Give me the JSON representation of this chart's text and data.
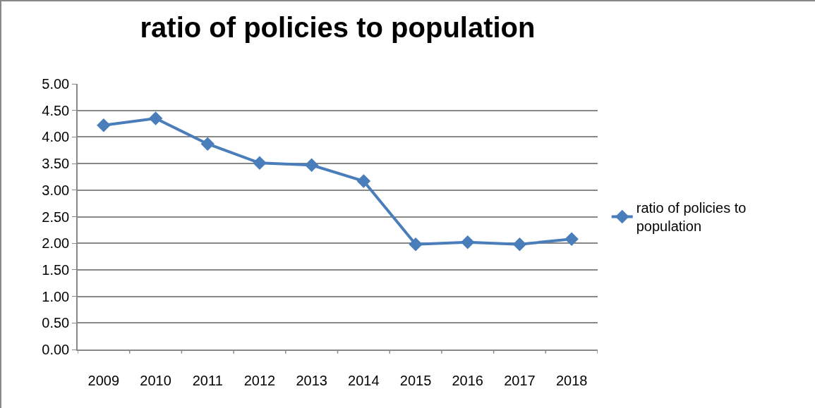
{
  "chart_data": {
    "type": "line",
    "title": "ratio of policies to population",
    "categories": [
      "2009",
      "2010",
      "2011",
      "2012",
      "2013",
      "2014",
      "2015",
      "2016",
      "2017",
      "2018"
    ],
    "series": [
      {
        "name": "ratio of policies to population",
        "color": "#4a7ebb",
        "values": [
          4.22,
          4.35,
          3.87,
          3.51,
          3.47,
          3.17,
          1.98,
          2.02,
          1.98,
          2.08
        ]
      }
    ],
    "ylim": [
      0,
      5
    ],
    "yticks": [
      {
        "value": 0,
        "label": "0.00"
      },
      {
        "value": 0.5,
        "label": "0.50"
      },
      {
        "value": 1,
        "label": "1.00"
      },
      {
        "value": 1.5,
        "label": "1.50"
      },
      {
        "value": 2,
        "label": "2.00"
      },
      {
        "value": 2.5,
        "label": "2.50"
      },
      {
        "value": 3,
        "label": "3.00"
      },
      {
        "value": 3.5,
        "label": "3.50"
      },
      {
        "value": 4,
        "label": "4.00"
      },
      {
        "value": 4.5,
        "label": "4.50"
      },
      {
        "value": 5,
        "label": "5.00"
      }
    ],
    "grid": "y",
    "legend": "right",
    "marker": "diamond",
    "line_style": "solid"
  }
}
